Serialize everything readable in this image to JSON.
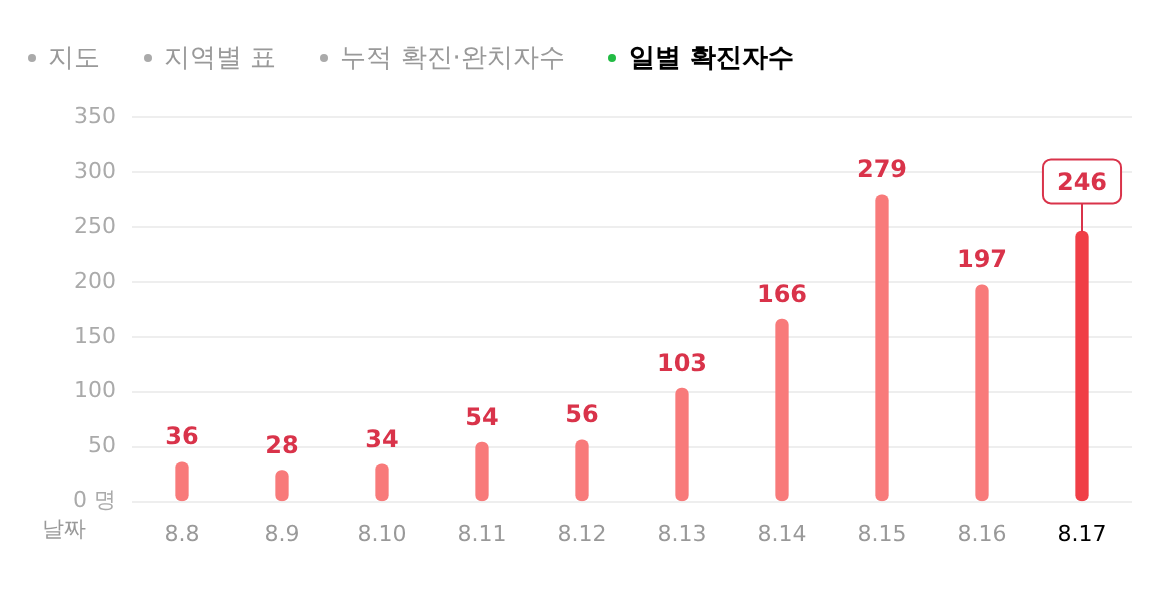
{
  "chart_data": {
    "type": "bar",
    "title": "일별 확진자수",
    "annotations": [
      "지도",
      "지역별 표",
      "누적 확진·완치자수"
    ],
    "xlabel": "날짜",
    "categories": [
      "8.8",
      "8.9",
      "8.10",
      "8.11",
      "8.12",
      "8.13",
      "8.14",
      "8.15",
      "8.16",
      "8.17"
    ],
    "values": [
      36,
      28,
      34,
      54,
      56,
      103,
      166,
      279,
      197,
      246
    ],
    "colors": [
      "#f87a7a",
      "#f87a7a",
      "#f87a7a",
      "#f87a7a",
      "#f87a7a",
      "#f87a7a",
      "#f87a7a",
      "#f87a7a",
      "#f87a7a",
      "#f03e46"
    ],
    "ylim": [
      0,
      350
    ],
    "yticks": [
      {
        "value": 0,
        "label": "0 명"
      },
      50,
      100,
      150,
      200,
      250,
      300,
      350
    ],
    "grid": "y",
    "data_labels": true,
    "legend": false
  }
}
